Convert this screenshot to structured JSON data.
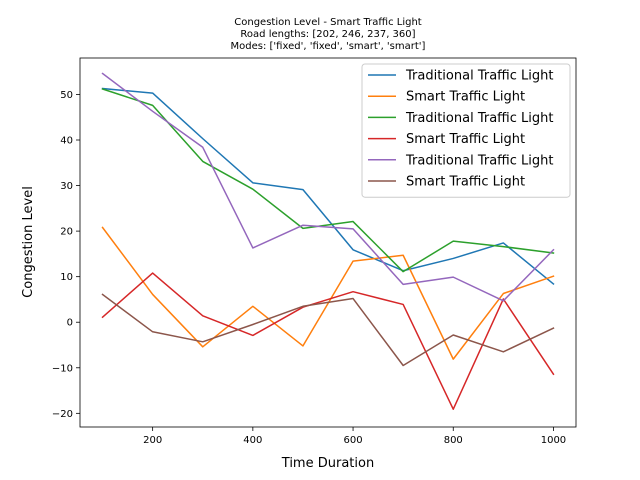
{
  "chart_data": {
    "type": "line",
    "title_lines": [
      "Congestion Level - Smart Traffic Light",
      "Road lengths: [202, 246, 237, 360]",
      "Modes: ['fixed', 'fixed', 'smart', 'smart']"
    ],
    "xlabel": "Time Duration",
    "ylabel": "Congestion Level",
    "xlim": [
      55,
      1045
    ],
    "ylim": [
      -23,
      58
    ],
    "xticks": [
      200,
      400,
      600,
      800,
      1000
    ],
    "yticks": [
      -20,
      -10,
      0,
      10,
      20,
      30,
      40,
      50
    ],
    "grid": false,
    "legend_position": "upper right",
    "x": [
      100,
      200,
      300,
      400,
      500,
      600,
      700,
      800,
      900,
      1000
    ],
    "series": [
      {
        "name": "Traditional Traffic Light",
        "color": "#1f77b4",
        "values": [
          51.3,
          50.3,
          40.3,
          30.6,
          29.1,
          15.9,
          11.3,
          14.0,
          17.4,
          8.4
        ]
      },
      {
        "name": "Smart Traffic Light",
        "color": "#ff7f0e",
        "values": [
          20.8,
          6.1,
          -5.4,
          3.5,
          -5.2,
          13.4,
          14.7,
          -8.1,
          6.3,
          10.1
        ]
      },
      {
        "name": "Traditional Traffic Light",
        "color": "#2ca02c",
        "values": [
          51.2,
          47.6,
          35.3,
          29.2,
          20.6,
          22.1,
          11.1,
          17.8,
          16.6,
          15.2
        ]
      },
      {
        "name": "Smart Traffic Light",
        "color": "#d62728",
        "values": [
          1.1,
          10.8,
          1.4,
          -2.9,
          3.3,
          6.7,
          3.9,
          -19.1,
          5.1,
          -11.4
        ]
      },
      {
        "name": "Traditional Traffic Light",
        "color": "#9467bd",
        "values": [
          54.6,
          46.3,
          38.4,
          16.3,
          21.3,
          20.5,
          8.3,
          9.9,
          4.7,
          15.9
        ]
      },
      {
        "name": "Smart Traffic Light",
        "color": "#8c564b",
        "values": [
          6.1,
          -2.1,
          -4.3,
          -0.5,
          3.5,
          5.2,
          -9.5,
          -2.8,
          -6.5,
          -1.3
        ]
      }
    ]
  }
}
